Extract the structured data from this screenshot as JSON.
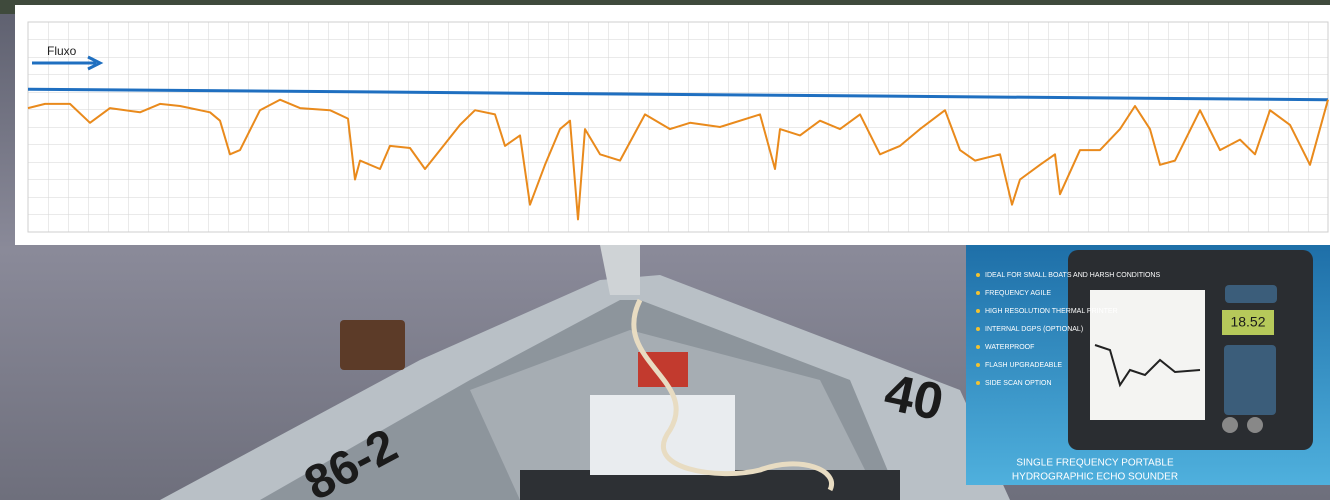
{
  "chart_data": {
    "type": "line",
    "annotation": "Fluxo",
    "xlim": [
      0,
      1300
    ],
    "ylim": [
      0,
      100
    ],
    "grid": true,
    "series": [
      {
        "color": "#1f6fc0",
        "x": [
          0,
          1300
        ],
        "values": [
          68,
          63
        ]
      },
      {
        "color": "#e98a1c",
        "x": [
          0,
          17,
          42,
          62,
          82,
          112,
          132,
          152,
          182,
          192,
          202,
          212,
          232,
          252,
          272,
          302,
          320,
          327,
          332,
          352,
          362,
          382,
          397,
          412,
          432,
          447,
          467,
          477,
          492,
          502,
          517,
          532,
          542,
          550,
          557,
          572,
          592,
          617,
          642,
          662,
          692,
          732,
          747,
          752,
          772,
          792,
          812,
          832,
          852,
          872,
          892,
          917,
          932,
          947,
          972,
          984,
          992,
          1012,
          1027,
          1032,
          1052,
          1072,
          1092,
          1107,
          1122,
          1132,
          1147,
          1172,
          1192,
          1212,
          1227,
          1242,
          1262,
          1282,
          1300
        ],
        "values": [
          59,
          61,
          61,
          52,
          59,
          57,
          61,
          60,
          57,
          53,
          37,
          39,
          58,
          63,
          59,
          58,
          54,
          25,
          34,
          30,
          41,
          40,
          30,
          39,
          51,
          58,
          56,
          41,
          46,
          13,
          32,
          49,
          53,
          6,
          49,
          37,
          34,
          56,
          49,
          52,
          50,
          56,
          30,
          49,
          46,
          53,
          49,
          56,
          37,
          41,
          49,
          58,
          39,
          34,
          37,
          13,
          25,
          32,
          37,
          18,
          39,
          39,
          49,
          60,
          49,
          32,
          34,
          58,
          39,
          44,
          37,
          58,
          51,
          32,
          63
        ]
      }
    ]
  },
  "inset": {
    "bullets": [
      "IDEAL FOR SMALL BOATS AND HARSH CONDITIONS",
      "FREQUENCY AGILE",
      "HIGH RESOLUTION THERMAL PRINTER",
      "INTERNAL DGPS (OPTIONAL)",
      "WATERPROOF",
      "FLASH UPGRADEABLE",
      "SIDE SCAN OPTION"
    ],
    "display": "18.52",
    "caption": [
      "SINGLE FREQUENCY PORTABLE",
      "HYDROGRAPHIC ECHO SOUNDER"
    ]
  },
  "boat": {
    "numbers": [
      "40",
      "86-2"
    ]
  }
}
